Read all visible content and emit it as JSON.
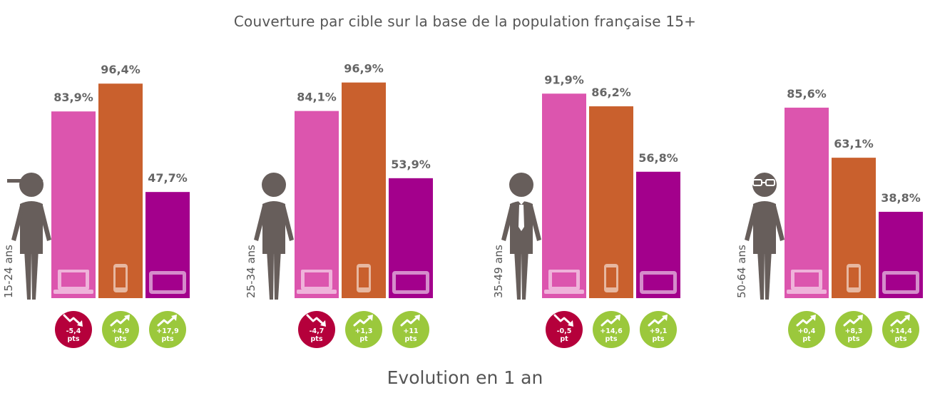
{
  "title": "Couverture par cible sur la base de la population française 15+",
  "footer": "Evolution en 1 an",
  "colors": {
    "computer": "#dc55ae",
    "smartphone": "#c9602d",
    "tablet": "#a3008c",
    "badge_up": "#9bc83c",
    "badge_down": "#b5003b",
    "figure": "#675e5b"
  },
  "chart_data": {
    "type": "bar",
    "ylim": [
      0,
      100
    ],
    "devices": [
      "computer-icon",
      "smartphone-icon",
      "tablet-icon"
    ],
    "groups": [
      {
        "age": "15-24 ans",
        "person": "cap",
        "values": [
          83.9,
          96.4,
          47.7
        ],
        "labels": [
          "83,9%",
          "96,4%",
          "47,7%"
        ],
        "evolution": [
          {
            "direction": "down",
            "value": "-5,4",
            "unit": "pts"
          },
          {
            "direction": "up",
            "value": "+4,9",
            "unit": "pts"
          },
          {
            "direction": "up",
            "value": "+17,9",
            "unit": "pts"
          }
        ]
      },
      {
        "age": "25-34 ans",
        "person": "plain",
        "values": [
          84.1,
          96.9,
          53.9
        ],
        "labels": [
          "84,1%",
          "96,9%",
          "53,9%"
        ],
        "evolution": [
          {
            "direction": "down",
            "value": "-4,7",
            "unit": "pts"
          },
          {
            "direction": "up",
            "value": "+1,3",
            "unit": "pt"
          },
          {
            "direction": "up",
            "value": "+11",
            "unit": "pts"
          }
        ]
      },
      {
        "age": "35-49 ans",
        "person": "tie",
        "values": [
          91.9,
          86.2,
          56.8
        ],
        "labels": [
          "91,9%",
          "86,2%",
          "56,8%"
        ],
        "evolution": [
          {
            "direction": "down",
            "value": "-0,5",
            "unit": "pt"
          },
          {
            "direction": "up",
            "value": "+14,6",
            "unit": "pts"
          },
          {
            "direction": "up",
            "value": "+9,1",
            "unit": "pts"
          }
        ]
      },
      {
        "age": "50-64 ans",
        "person": "glasses",
        "values": [
          85.6,
          63.1,
          38.8
        ],
        "labels": [
          "85,6%",
          "63,1%",
          "38,8%"
        ],
        "evolution": [
          {
            "direction": "up",
            "value": "+0,4",
            "unit": "pt"
          },
          {
            "direction": "up",
            "value": "+8,3",
            "unit": "pts"
          },
          {
            "direction": "up",
            "value": "+14,4",
            "unit": "pts"
          }
        ]
      }
    ]
  }
}
